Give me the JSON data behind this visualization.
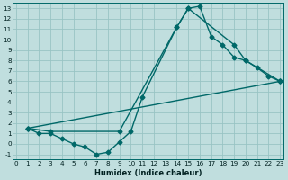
{
  "xlabel": "Humidex (Indice chaleur)",
  "bg_color": "#c0dede",
  "grid_color": "#99c4c4",
  "line_color": "#006868",
  "xlim": [
    -0.3,
    23.3
  ],
  "ylim": [
    -1.5,
    13.5
  ],
  "xticks": [
    0,
    1,
    2,
    3,
    4,
    5,
    6,
    7,
    8,
    9,
    10,
    11,
    12,
    13,
    14,
    15,
    16,
    17,
    18,
    19,
    20,
    21,
    22,
    23
  ],
  "yticks": [
    -1,
    0,
    1,
    2,
    3,
    4,
    5,
    6,
    7,
    8,
    9,
    10,
    11,
    12,
    13
  ],
  "line1_x": [
    1,
    2,
    3,
    4,
    5,
    6,
    7,
    8,
    9,
    10,
    11,
    14,
    15,
    16,
    17,
    18,
    19,
    20,
    21,
    22,
    23
  ],
  "line1_y": [
    1.5,
    1.0,
    1.0,
    0.5,
    0.0,
    -0.3,
    -1.0,
    -0.8,
    0.2,
    1.2,
    4.5,
    11.2,
    13.0,
    13.2,
    10.3,
    9.5,
    8.3,
    8.0,
    7.3,
    6.5,
    6.0
  ],
  "line2_x": [
    1,
    3,
    9,
    14,
    15,
    19,
    20,
    23
  ],
  "line2_y": [
    1.5,
    1.2,
    1.2,
    11.2,
    13.0,
    9.5,
    8.0,
    6.0
  ],
  "line3_x": [
    1,
    23
  ],
  "line3_y": [
    1.5,
    6.0
  ],
  "markersize": 2.5,
  "linewidth": 1.0,
  "xlabel_fontsize": 6.0,
  "tick_fontsize": 5.2
}
